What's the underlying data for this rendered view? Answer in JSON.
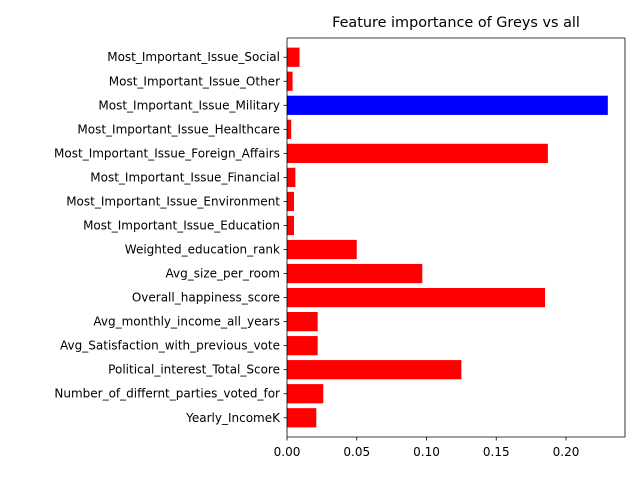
{
  "chart_data": {
    "type": "bar",
    "orientation": "horizontal",
    "title": "Feature importance of Greys vs all",
    "xlabel": "",
    "ylabel": "",
    "xlim": [
      0,
      0.2423
    ],
    "xticks": [
      "0.00",
      "0.05",
      "0.10",
      "0.15",
      "0.20"
    ],
    "grid": false,
    "categories": [
      "Yearly_IncomeK",
      "Number_of_differnt_parties_voted_for",
      "Political_interest_Total_Score",
      "Avg_Satisfaction_with_previous_vote",
      "Avg_monthly_income_all_years",
      "Overall_happiness_score",
      "Avg_size_per_room",
      "Weighted_education_rank",
      "Most_Important_Issue_Education",
      "Most_Important_Issue_Environment",
      "Most_Important_Issue_Financial",
      "Most_Important_Issue_Foreign_Affairs",
      "Most_Important_Issue_Healthcare",
      "Most_Important_Issue_Military",
      "Most_Important_Issue_Other",
      "Most_Important_Issue_Social"
    ],
    "values": [
      0.021,
      0.026,
      0.125,
      0.022,
      0.022,
      0.185,
      0.097,
      0.05,
      0.005,
      0.005,
      0.006,
      0.187,
      0.003,
      0.23,
      0.004,
      0.009
    ],
    "colors": [
      "#ff0000",
      "#ff0000",
      "#ff0000",
      "#ff0000",
      "#ff0000",
      "#ff0000",
      "#ff0000",
      "#ff0000",
      "#ff0000",
      "#ff0000",
      "#ff0000",
      "#ff0000",
      "#ff0000",
      "#0000ff",
      "#ff0000",
      "#ff0000"
    ]
  }
}
